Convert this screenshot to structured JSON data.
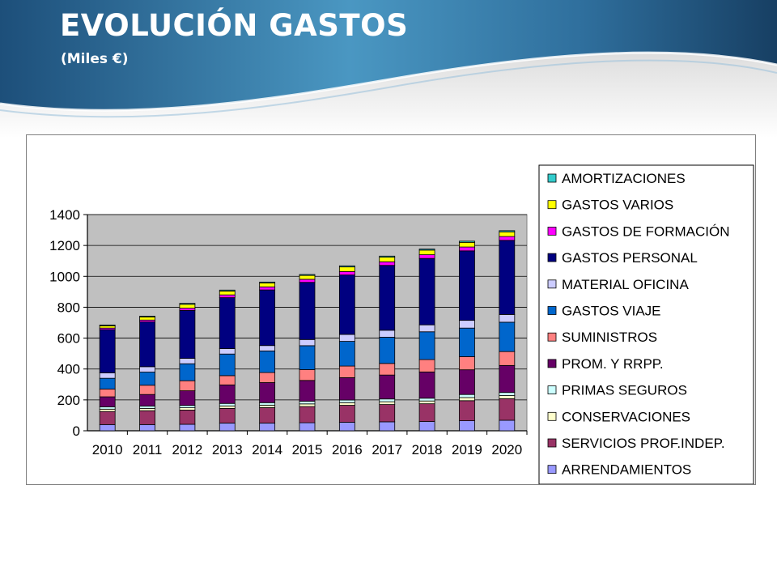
{
  "title": "EVOLUCIÓN GASTOS",
  "subtitle": "(Miles €)",
  "colors": {
    "header_dark": "#1d4f7a",
    "header_light": "#4f9ac4",
    "plot_bg": "#c0c0c0"
  },
  "chart_data": {
    "type": "bar",
    "stacked": true,
    "title": "",
    "xlabel": "",
    "ylabel": "",
    "ylim": [
      0,
      1400
    ],
    "yticks": [
      0,
      200,
      400,
      600,
      800,
      1000,
      1200,
      1400
    ],
    "grid": true,
    "legend_position": "right",
    "categories": [
      "2010",
      "2011",
      "2012",
      "2013",
      "2014",
      "2015",
      "2016",
      "2017",
      "2018",
      "2019",
      "2020"
    ],
    "series": [
      {
        "name": "ARRENDAMIENTOS",
        "color": "#9999ff",
        "values": [
          40,
          40,
          42,
          50,
          50,
          52,
          55,
          58,
          60,
          65,
          68
        ]
      },
      {
        "name": "SERVICIOS PROF.INDEP.",
        "color": "#993366",
        "values": [
          85,
          90,
          92,
          95,
          100,
          105,
          110,
          112,
          115,
          130,
          140
        ]
      },
      {
        "name": "CONSERVACIONES",
        "color": "#ffffcc",
        "values": [
          15,
          15,
          15,
          16,
          16,
          17,
          17,
          18,
          18,
          20,
          20
        ]
      },
      {
        "name": "PRIMAS SEGUROS",
        "color": "#ccffff",
        "values": [
          15,
          15,
          15,
          16,
          16,
          17,
          17,
          18,
          18,
          20,
          20
        ]
      },
      {
        "name": "PROM. Y RRPP.",
        "color": "#660066",
        "values": [
          65,
          75,
          95,
          120,
          130,
          135,
          145,
          155,
          170,
          160,
          175
        ]
      },
      {
        "name": "SUMINISTROS",
        "color": "#ff8080",
        "values": [
          50,
          60,
          65,
          60,
          65,
          70,
          75,
          75,
          80,
          85,
          90
        ]
      },
      {
        "name": "GASTOS VIAJE",
        "color": "#0066cc",
        "values": [
          70,
          85,
          110,
          140,
          140,
          155,
          160,
          170,
          180,
          185,
          190
        ]
      },
      {
        "name": "MATERIAL OFICINA",
        "color": "#ccccff",
        "values": [
          35,
          35,
          35,
          35,
          35,
          40,
          45,
          45,
          45,
          50,
          50
        ]
      },
      {
        "name": "GASTOS PERSONAL",
        "color": "#000080",
        "values": [
          280,
          290,
          310,
          330,
          360,
          370,
          385,
          420,
          430,
          450,
          480
        ]
      },
      {
        "name": "GASTOS DE FORMACIÓN",
        "color": "#ff00ff",
        "values": [
          10,
          12,
          15,
          18,
          20,
          20,
          22,
          23,
          24,
          25,
          25
        ]
      },
      {
        "name": "GASTOS VARIOS",
        "color": "#ffff00",
        "values": [
          15,
          20,
          25,
          25,
          25,
          25,
          30,
          30,
          30,
          30,
          30
        ]
      },
      {
        "name": "AMORTIZACIONES",
        "color": "#33cccc",
        "values": [
          5,
          5,
          6,
          6,
          6,
          6,
          7,
          7,
          7,
          8,
          8
        ]
      }
    ],
    "legend_order": [
      "AMORTIZACIONES",
      "GASTOS VARIOS",
      "GASTOS DE FORMACIÓN",
      "GASTOS PERSONAL",
      "MATERIAL OFICINA",
      "GASTOS VIAJE",
      "SUMINISTROS",
      "PROM. Y RRPP.",
      "PRIMAS SEGUROS",
      "CONSERVACIONES",
      "SERVICIOS PROF.INDEP.",
      "ARRENDAMIENTOS"
    ]
  }
}
